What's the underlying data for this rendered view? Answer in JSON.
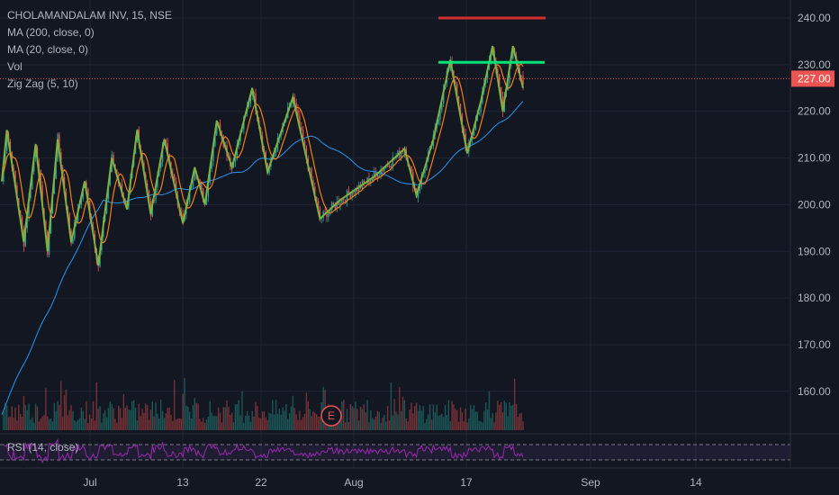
{
  "legend": {
    "title": "CHOLAMANDALAM INV, 15, NSE",
    "ma200": "MA (200, close, 0)",
    "ma20": "MA (20, close, 0)",
    "vol": "Vol",
    "zigzag": "Zig Zag (5, 10)",
    "rsi": "RSI (14, close)"
  },
  "colors": {
    "background": "#131722",
    "grid": "#1f2433",
    "axis_text": "#b2b5be",
    "candle_up": "#26a69a",
    "candle_down": "#ef5350",
    "ma20": "#f57f17",
    "ma200": "#2196f3",
    "zigzag": "#7cb342",
    "rsi": "#9c27b0",
    "last_price": "#ef5350",
    "resistance_red": "#d32f2f",
    "resistance_green": "#00e676"
  },
  "earnings_marker": "E",
  "chart_data": {
    "type": "candlestick",
    "price_axis": {
      "ticks": [
        "240.00",
        "230.00",
        "220.00",
        "210.00",
        "200.00",
        "190.00",
        "180.00",
        "170.00",
        "160.00"
      ],
      "range": [
        150,
        245
      ]
    },
    "last_price": "227.00",
    "time_axis": {
      "ticks": [
        "Jul",
        "13",
        "22",
        "Aug",
        "17",
        "Sep",
        "14"
      ]
    },
    "zigzag_points": [
      {
        "t": 0,
        "price": 205
      },
      {
        "t": 3,
        "price": 216
      },
      {
        "t": 13,
        "price": 192
      },
      {
        "t": 20,
        "price": 213
      },
      {
        "t": 27,
        "price": 190
      },
      {
        "t": 33,
        "price": 214
      },
      {
        "t": 41,
        "price": 192
      },
      {
        "t": 49,
        "price": 205
      },
      {
        "t": 57,
        "price": 187
      },
      {
        "t": 65,
        "price": 210
      },
      {
        "t": 74,
        "price": 199
      },
      {
        "t": 80,
        "price": 216
      },
      {
        "t": 88,
        "price": 198
      },
      {
        "t": 96,
        "price": 214
      },
      {
        "t": 107,
        "price": 196
      },
      {
        "t": 114,
        "price": 208
      },
      {
        "t": 120,
        "price": 200
      },
      {
        "t": 127,
        "price": 218
      },
      {
        "t": 136,
        "price": 208
      },
      {
        "t": 148,
        "price": 225
      },
      {
        "t": 157,
        "price": 207
      },
      {
        "t": 172,
        "price": 223
      },
      {
        "t": 188,
        "price": 197
      },
      {
        "t": 200,
        "price": 201
      },
      {
        "t": 220,
        "price": 206
      },
      {
        "t": 238,
        "price": 212
      },
      {
        "t": 245,
        "price": 202
      },
      {
        "t": 255,
        "price": 214
      },
      {
        "t": 265,
        "price": 231
      },
      {
        "t": 275,
        "price": 211
      },
      {
        "t": 283,
        "price": 222
      },
      {
        "t": 290,
        "price": 234
      },
      {
        "t": 296,
        "price": 220
      },
      {
        "t": 302,
        "price": 234
      },
      {
        "t": 308,
        "price": 225
      }
    ],
    "resistance_lines": [
      {
        "price": 240,
        "t_start": 248,
        "t_end": 308,
        "color": "red"
      },
      {
        "price": 230.5,
        "t_start": 248,
        "t_end": 308,
        "color": "green"
      }
    ]
  }
}
